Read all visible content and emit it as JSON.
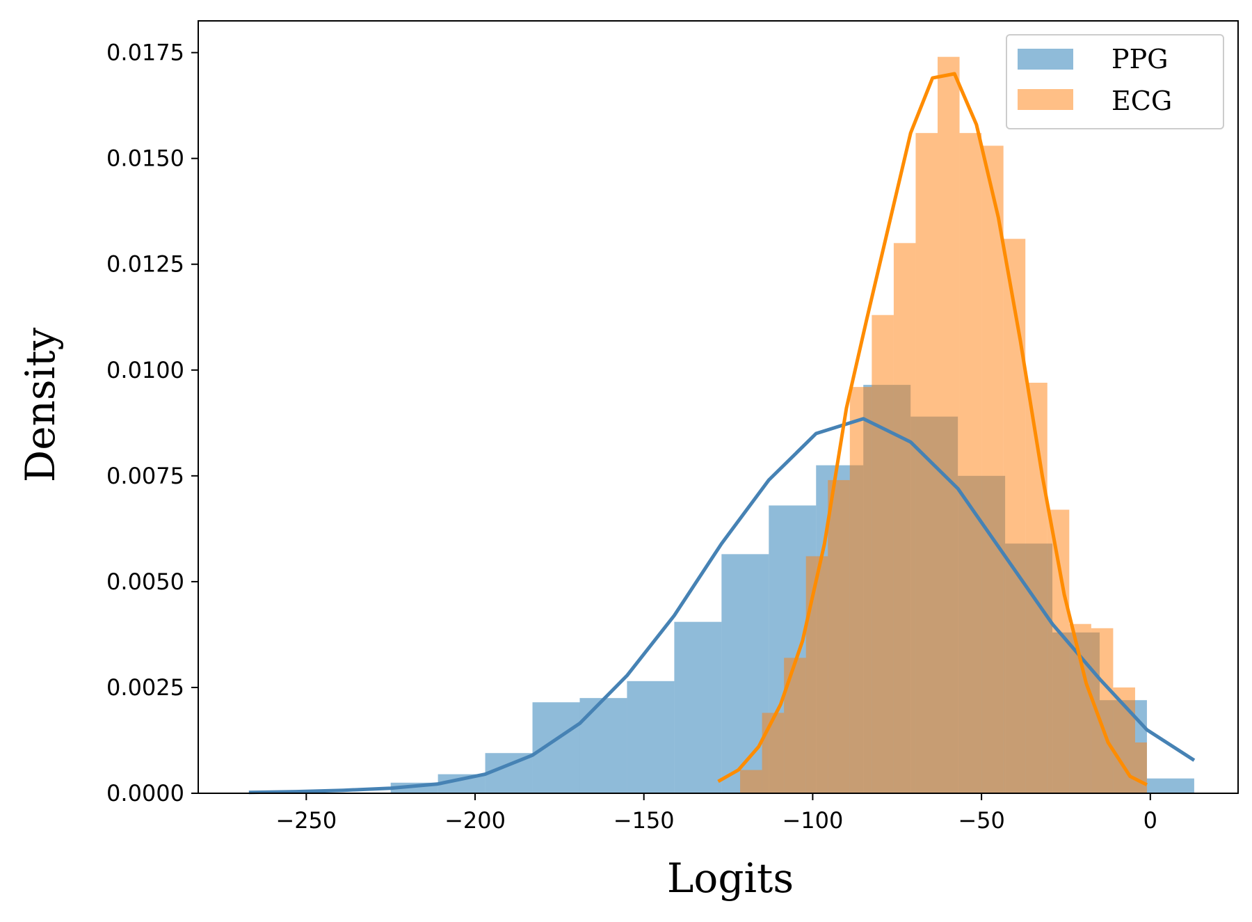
{
  "chart_data": {
    "type": "histogram",
    "xlabel": "Logits",
    "ylabel": "Density",
    "xlim": [
      -282,
      26
    ],
    "ylim": [
      0,
      0.01825
    ],
    "xticks": [
      -250,
      -200,
      -150,
      -100,
      -50,
      0
    ],
    "xtick_labels": [
      "−250",
      "−200",
      "−150",
      "−100",
      "−50",
      "0"
    ],
    "yticks": [
      0,
      0.0025,
      0.005,
      0.0075,
      0.01,
      0.0125,
      0.015,
      0.0175
    ],
    "ytick_labels": [
      "0.0000",
      "0.0025",
      "0.0050",
      "0.0075",
      "0.0100",
      "0.0125",
      "0.0150",
      "0.0175"
    ],
    "grid": false,
    "legend_position": "top-right",
    "series": [
      {
        "name": "PPG",
        "color": "#4682b4",
        "bar_color": "#1f77b4",
        "bar_opacity": 0.5,
        "bins": [
          {
            "x0": -225,
            "x1": -211,
            "value": 0.00025
          },
          {
            "x0": -211,
            "x1": -197,
            "value": 0.00045
          },
          {
            "x0": -197,
            "x1": -183,
            "value": 0.00095
          },
          {
            "x0": -183,
            "x1": -169,
            "value": 0.00215
          },
          {
            "x0": -169,
            "x1": -155,
            "value": 0.00225
          },
          {
            "x0": -155,
            "x1": -141,
            "value": 0.00265
          },
          {
            "x0": -141,
            "x1": -127,
            "value": 0.00405
          },
          {
            "x0": -127,
            "x1": -113,
            "value": 0.00565
          },
          {
            "x0": -113,
            "x1": -99,
            "value": 0.0068
          },
          {
            "x0": -99,
            "x1": -85,
            "value": 0.00775
          },
          {
            "x0": -85,
            "x1": -71,
            "value": 0.00965
          },
          {
            "x0": -71,
            "x1": -57,
            "value": 0.0089
          },
          {
            "x0": -57,
            "x1": -43,
            "value": 0.0075
          },
          {
            "x0": -43,
            "x1": -29,
            "value": 0.0059
          },
          {
            "x0": -29,
            "x1": -15,
            "value": 0.0038
          },
          {
            "x0": -15,
            "x1": -1,
            "value": 0.0022
          },
          {
            "x0": -1,
            "x1": 13,
            "value": 0.00035
          }
        ],
        "kde": {
          "x": [
            -267,
            -253,
            -239,
            -225,
            -211,
            -197,
            -183,
            -169,
            -155,
            -141,
            -127,
            -113,
            -99,
            -85,
            -71,
            -57,
            -43,
            -29,
            -15,
            -1,
            13
          ],
          "y": [
            2e-05,
            4e-05,
            7e-05,
            0.00012,
            0.00022,
            0.00045,
            0.0009,
            0.00165,
            0.00278,
            0.0042,
            0.0059,
            0.0074,
            0.0085,
            0.00885,
            0.0083,
            0.0072,
            0.0056,
            0.004,
            0.0027,
            0.0015,
            0.00078
          ]
        }
      },
      {
        "name": "ECG",
        "color": "#ff8c00",
        "bar_color": "#ff7f0e",
        "bar_opacity": 0.5,
        "bins": [
          {
            "x0": -121.5,
            "x1": -115,
            "value": 0.00055
          },
          {
            "x0": -115,
            "x1": -108.5,
            "value": 0.0019
          },
          {
            "x0": -108.5,
            "x1": -102,
            "value": 0.0032
          },
          {
            "x0": -102,
            "x1": -95.5,
            "value": 0.0056
          },
          {
            "x0": -95.5,
            "x1": -89,
            "value": 0.0074
          },
          {
            "x0": -89,
            "x1": -82.5,
            "value": 0.0096
          },
          {
            "x0": -82.5,
            "x1": -76,
            "value": 0.0113
          },
          {
            "x0": -76,
            "x1": -69.5,
            "value": 0.013
          },
          {
            "x0": -69.5,
            "x1": -63,
            "value": 0.0156
          },
          {
            "x0": -63,
            "x1": -56.5,
            "value": 0.0174
          },
          {
            "x0": -56.5,
            "x1": -50,
            "value": 0.0156
          },
          {
            "x0": -50,
            "x1": -43.5,
            "value": 0.0153
          },
          {
            "x0": -43.5,
            "x1": -37,
            "value": 0.0131
          },
          {
            "x0": -37,
            "x1": -30.5,
            "value": 0.0097
          },
          {
            "x0": -30.5,
            "x1": -24,
            "value": 0.0067
          },
          {
            "x0": -24,
            "x1": -17.5,
            "value": 0.004
          },
          {
            "x0": -17.5,
            "x1": -11,
            "value": 0.0039
          },
          {
            "x0": -11,
            "x1": -4.5,
            "value": 0.0025
          },
          {
            "x0": -4.5,
            "x1": -1,
            "value": 0.0012
          }
        ],
        "kde": {
          "x": [
            -128,
            -122,
            -116,
            -109.5,
            -103,
            -96.5,
            -90,
            -84,
            -77.5,
            -71,
            -64.5,
            -58,
            -51.5,
            -45,
            -38.5,
            -32,
            -25.5,
            -19,
            -12.5,
            -6,
            -1
          ],
          "y": [
            0.00028,
            0.00055,
            0.0011,
            0.0021,
            0.0036,
            0.0059,
            0.0091,
            0.0112,
            0.0134,
            0.0156,
            0.0169,
            0.017,
            0.0158,
            0.0136,
            0.0107,
            0.0075,
            0.0047,
            0.0026,
            0.0012,
            0.0004,
            0.0002
          ]
        }
      }
    ]
  }
}
